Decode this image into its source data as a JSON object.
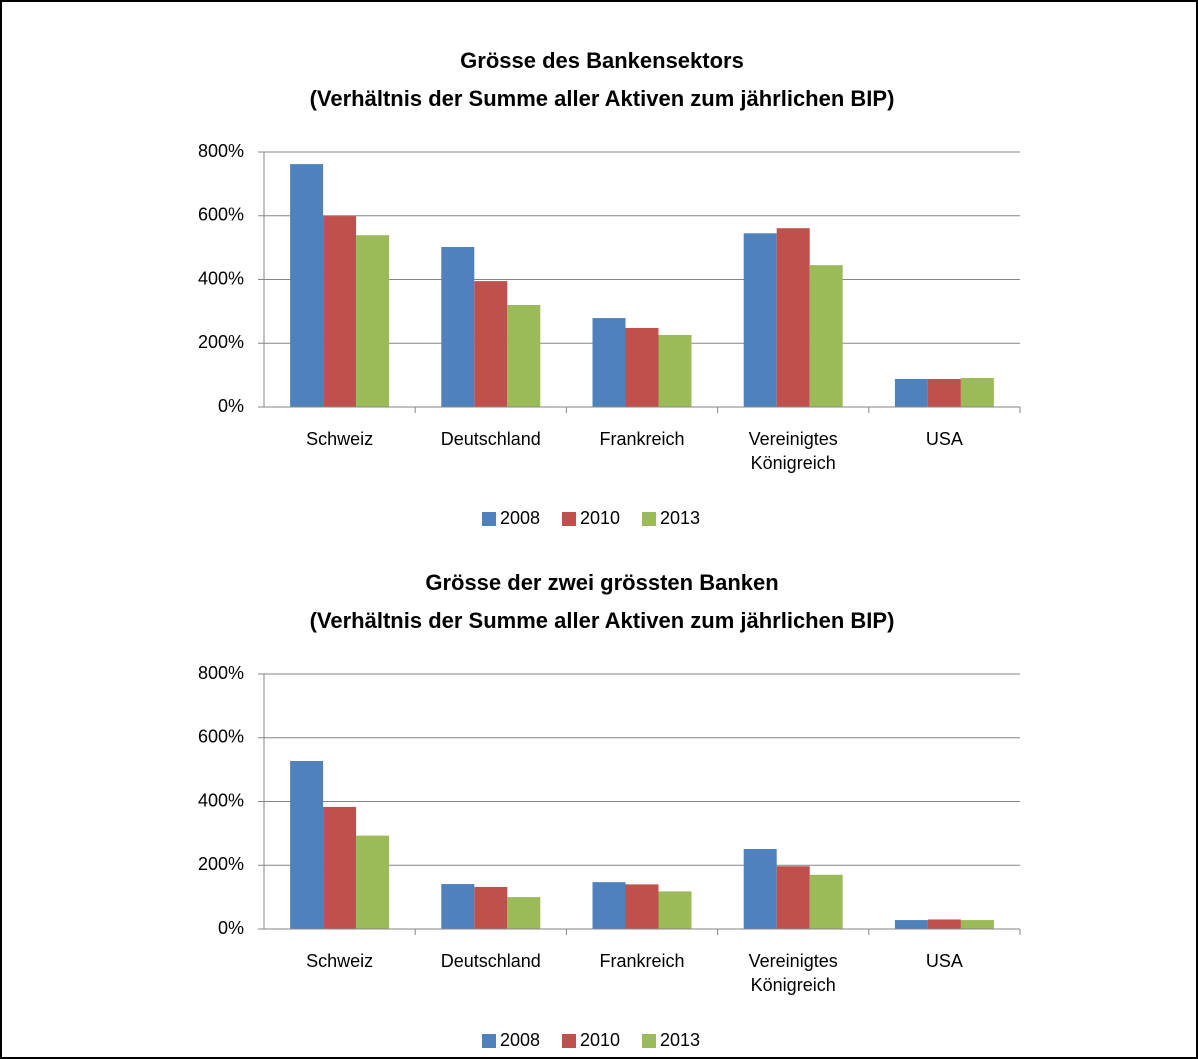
{
  "chart_data": [
    {
      "type": "bar",
      "title": "Grösse des Bankensektors",
      "subtitle": "(Verhältnis der Summe aller Aktiven zum jährlichen BIP)",
      "categories": [
        "Schweiz",
        "Deutschland",
        "Frankreich",
        "Vereinigtes Königreich",
        "USA"
      ],
      "series": [
        {
          "name": "2008",
          "color": "#4f81bd",
          "values": [
            762,
            502,
            279,
            545,
            88
          ]
        },
        {
          "name": "2010",
          "color": "#c0504d",
          "values": [
            599,
            395,
            248,
            561,
            88
          ]
        },
        {
          "name": "2013",
          "color": "#9bbb59",
          "values": [
            539,
            320,
            226,
            445,
            91
          ]
        }
      ],
      "ylim": [
        0,
        800
      ],
      "yticks": [
        {
          "value": 0,
          "label": "0%"
        },
        {
          "value": 200,
          "label": "200%"
        },
        {
          "value": 400,
          "label": "400%"
        },
        {
          "value": 600,
          "label": "600%"
        },
        {
          "value": 800,
          "label": "800%"
        }
      ],
      "grid": true,
      "legend": "bottom"
    },
    {
      "type": "bar",
      "title": "Grösse der zwei grössten Banken",
      "subtitle": "(Verhältnis der Summe aller Aktiven zum jährlichen BIP)",
      "categories": [
        "Schweiz",
        "Deutschland",
        "Frankreich",
        "Vereinigtes Königreich",
        "USA"
      ],
      "series": [
        {
          "name": "2008",
          "color": "#4f81bd",
          "values": [
            527,
            141,
            147,
            251,
            28
          ]
        },
        {
          "name": "2010",
          "color": "#c0504d",
          "values": [
            383,
            132,
            140,
            197,
            30
          ]
        },
        {
          "name": "2013",
          "color": "#9bbb59",
          "values": [
            293,
            100,
            118,
            170,
            28
          ]
        }
      ],
      "ylim": [
        0,
        800
      ],
      "yticks": [
        {
          "value": 0,
          "label": "0%"
        },
        {
          "value": 200,
          "label": "200%"
        },
        {
          "value": 400,
          "label": "400%"
        },
        {
          "value": 600,
          "label": "600%"
        },
        {
          "value": 800,
          "label": "800%"
        }
      ],
      "grid": true,
      "legend": "bottom"
    }
  ]
}
